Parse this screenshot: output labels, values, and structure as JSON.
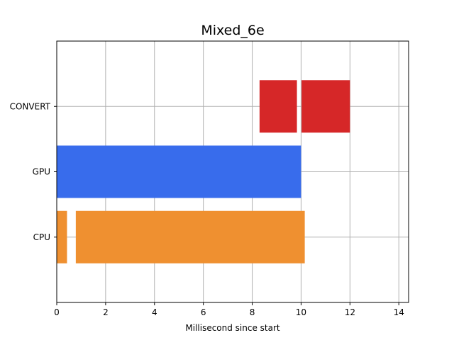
{
  "chart_data": {
    "type": "bar",
    "orientation": "horizontal",
    "title": "Mixed_6e",
    "xlabel": "Millisecond since start",
    "ylabel": "",
    "xlim": [
      0,
      14.4
    ],
    "xticks": [
      0,
      2,
      4,
      6,
      8,
      10,
      12,
      14
    ],
    "categories": [
      "CPU",
      "GPU",
      "CONVERT"
    ],
    "grid": true,
    "segments": [
      {
        "category": "CPU",
        "start": 0.0,
        "end": 0.42,
        "color": "#ef9030"
      },
      {
        "category": "CPU",
        "start": 0.78,
        "end": 10.15,
        "color": "#ef9030"
      },
      {
        "category": "GPU",
        "start": 0.0,
        "end": 10.0,
        "color": "#386cec"
      },
      {
        "category": "CONVERT",
        "start": 8.3,
        "end": 9.83,
        "color": "#d62728"
      },
      {
        "category": "CONVERT",
        "start": 10.02,
        "end": 12.0,
        "color": "#d62728"
      }
    ]
  }
}
